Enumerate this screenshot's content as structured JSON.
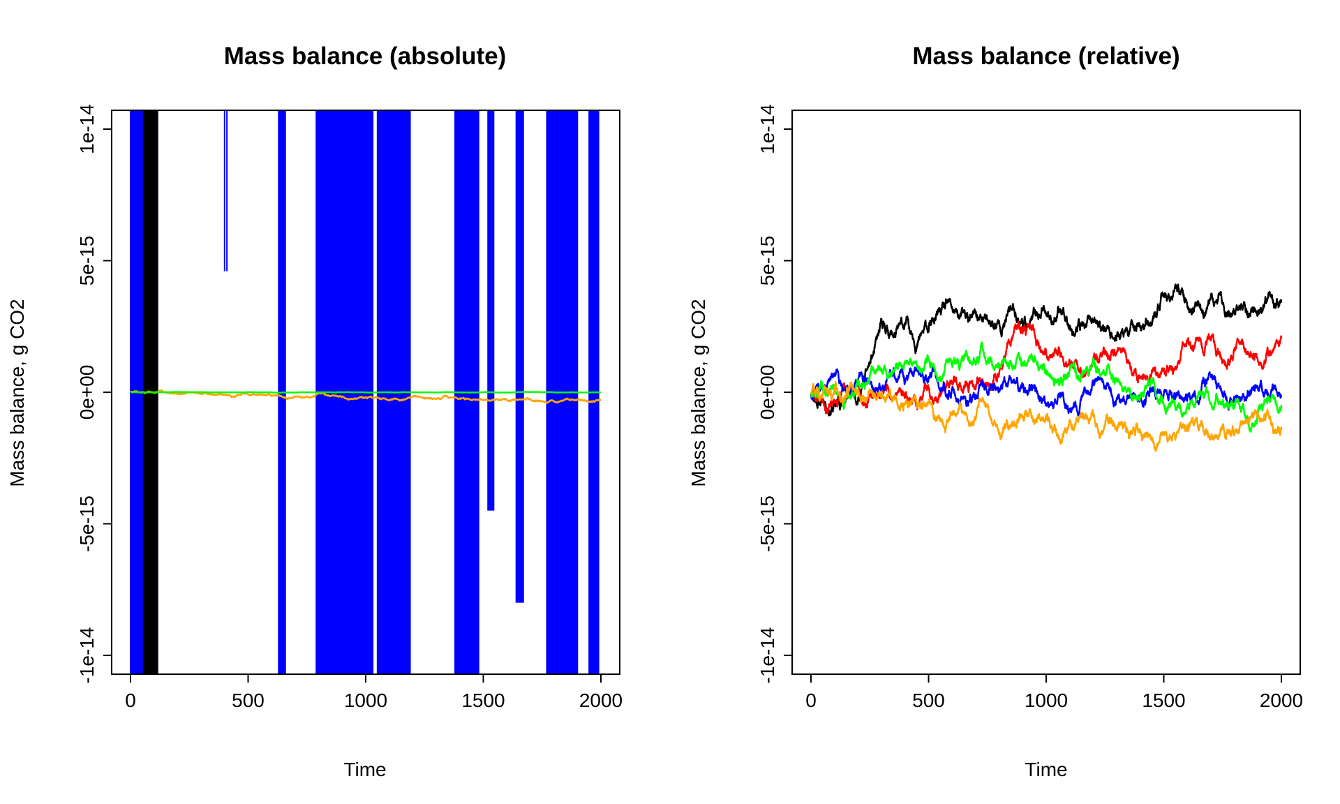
{
  "chart_data": [
    {
      "type": "line",
      "title": "Mass balance (absolute)",
      "xlabel": "Time",
      "ylabel": "Mass balance, g CO2",
      "xlim": [
        0,
        2000
      ],
      "ylim": [
        -1.08e-14,
        1.08e-14
      ],
      "xticks": [
        0,
        500,
        1000,
        1500,
        2000
      ],
      "xtick_labels": [
        "0",
        "500",
        "1000",
        "1500",
        "2000"
      ],
      "yticks": [
        -1e-14,
        -5e-15,
        0,
        5e-15,
        1e-14
      ],
      "ytick_labels": [
        "-1e-14",
        "-5e-15",
        "0e+00",
        "5e-15",
        "1e-14"
      ],
      "series": [
        {
          "name": "black",
          "color": "#000000",
          "style": "spikes",
          "segments": [
            [
              0,
              115,
              -1.08e-14,
              1.08e-14,
              0.55
            ]
          ]
        },
        {
          "name": "blue",
          "color": "#0000FF",
          "style": "spikes",
          "segments": [
            [
              0,
              30,
              -1.08e-14,
              1.08e-14,
              4
            ],
            [
              30,
              50,
              -1.08e-14,
              1.08e-14,
              2.5
            ],
            [
              400,
              410,
              1.08e-14,
              4.6e-15,
              10
            ],
            [
              630,
              660,
              -1.08e-14,
              1.08e-14,
              4
            ],
            [
              790,
              1000,
              -1.08e-14,
              1.08e-14,
              2.2
            ],
            [
              1000,
              1030,
              -1.08e-14,
              1.08e-14,
              3
            ],
            [
              1050,
              1190,
              -1.08e-14,
              1.08e-14,
              2.2
            ],
            [
              1380,
              1480,
              -1.08e-14,
              1.08e-14,
              2.5
            ],
            [
              1520,
              1545,
              1.08e-14,
              -4.5e-15,
              6
            ],
            [
              1640,
              1670,
              1.08e-14,
              -8e-15,
              5
            ],
            [
              1770,
              1900,
              -1.08e-14,
              1.08e-14,
              2.5
            ],
            [
              1950,
              1990,
              -1.08e-14,
              1.08e-14,
              4
            ]
          ]
        },
        {
          "name": "orange",
          "color": "#FFA500",
          "style": "walk",
          "seed": 7,
          "step": 1.7e-17,
          "drift": -2.5e-19,
          "start": 0,
          "end_target": -3.2e-16
        },
        {
          "name": "green",
          "color": "#00FF00",
          "style": "walk",
          "seed": 3,
          "step": 2e-18,
          "drift": 0,
          "start": 0,
          "end_target": 0
        }
      ]
    },
    {
      "type": "line",
      "title": "Mass balance (relative)",
      "xlabel": "Time",
      "ylabel": "Mass balance, g CO2",
      "xlim": [
        0,
        2000
      ],
      "ylim": [
        -1.08e-14,
        1.08e-14
      ],
      "xticks": [
        0,
        500,
        1000,
        1500,
        2000
      ],
      "xtick_labels": [
        "0",
        "500",
        "1000",
        "1500",
        "2000"
      ],
      "yticks": [
        -1e-14,
        -5e-15,
        0,
        5e-15,
        1e-14
      ],
      "ytick_labels": [
        "-1e-14",
        "-5e-15",
        "0e+00",
        "5e-15",
        "1e-14"
      ],
      "series": [
        {
          "name": "black",
          "color": "#000000",
          "style": "walk",
          "seed": 11,
          "step": 1.2e-16,
          "knots": [
            [
              0,
              0
            ],
            [
              100,
              -1e-16
            ],
            [
              200,
              2e-16
            ],
            [
              250,
              1e-15
            ],
            [
              300,
              1.9e-15
            ],
            [
              450,
              2.1e-15
            ],
            [
              550,
              2.6e-15
            ],
            [
              650,
              2.2e-15
            ],
            [
              800,
              2.3e-15
            ],
            [
              850,
              3.1e-15
            ],
            [
              950,
              2.7e-15
            ],
            [
              1000,
              3.2e-15
            ],
            [
              1150,
              2.9e-15
            ],
            [
              1250,
              2.6e-15
            ],
            [
              1350,
              2.1e-15
            ],
            [
              1450,
              3e-15
            ],
            [
              1500,
              3.6e-15
            ],
            [
              1600,
              3.1e-15
            ],
            [
              1700,
              3.1e-15
            ],
            [
              1800,
              3.3e-15
            ],
            [
              1900,
              3e-15
            ],
            [
              2000,
              2.9e-15
            ]
          ]
        },
        {
          "name": "red",
          "color": "#FF0000",
          "style": "walk",
          "seed": 23,
          "step": 1.1e-16,
          "knots": [
            [
              0,
              0
            ],
            [
              100,
              -2e-16
            ],
            [
              250,
              3e-16
            ],
            [
              450,
              1e-16
            ],
            [
              600,
              0
            ],
            [
              700,
              1e-16
            ],
            [
              780,
              6e-16
            ],
            [
              880,
              2.1e-15
            ],
            [
              1000,
              1.4e-15
            ],
            [
              1080,
              1.2e-15
            ],
            [
              1150,
              6e-16
            ],
            [
              1250,
              1.6e-15
            ],
            [
              1350,
              1.2e-15
            ],
            [
              1450,
              9e-16
            ],
            [
              1550,
              1.2e-15
            ],
            [
              1650,
              1.7e-15
            ],
            [
              1750,
              1.3e-15
            ],
            [
              1850,
              1.5e-15
            ],
            [
              1950,
              1.5e-15
            ],
            [
              2000,
              1.8e-15
            ]
          ]
        },
        {
          "name": "blue",
          "color": "#0000FF",
          "style": "walk",
          "seed": 31,
          "step": 1.1e-16,
          "knots": [
            [
              0,
              0
            ],
            [
              100,
              3e-16
            ],
            [
              200,
              4e-16
            ],
            [
              300,
              4e-16
            ],
            [
              400,
              3e-16
            ],
            [
              500,
              6e-16
            ],
            [
              600,
              5e-16
            ],
            [
              700,
              2e-16
            ],
            [
              800,
              4e-16
            ],
            [
              900,
              0
            ],
            [
              1000,
              1e-16
            ],
            [
              1100,
              2e-16
            ],
            [
              1200,
              0
            ],
            [
              1300,
              -5e-16
            ],
            [
              1400,
              -2e-16
            ],
            [
              1500,
              2e-16
            ],
            [
              1600,
              -2e-16
            ],
            [
              1700,
              5e-16
            ],
            [
              1800,
              0
            ],
            [
              1900,
              -3e-16
            ],
            [
              2000,
              1e-16
            ]
          ]
        },
        {
          "name": "green",
          "color": "#00FF00",
          "style": "walk",
          "seed": 47,
          "step": 1.1e-16,
          "knots": [
            [
              0,
              0
            ],
            [
              100,
              -2e-16
            ],
            [
              200,
              4e-16
            ],
            [
              300,
              8e-16
            ],
            [
              400,
              1.3e-15
            ],
            [
              550,
              1.2e-15
            ],
            [
              700,
              1.4e-15
            ],
            [
              800,
              1.2e-15
            ],
            [
              880,
              1.6e-15
            ],
            [
              1000,
              1e-15
            ],
            [
              1100,
              9e-16
            ],
            [
              1200,
              8e-16
            ],
            [
              1300,
              2e-16
            ],
            [
              1400,
              -4e-16
            ],
            [
              1500,
              -4e-16
            ],
            [
              1600,
              -2e-16
            ],
            [
              1700,
              -2e-16
            ],
            [
              1800,
              -1e-16
            ],
            [
              1900,
              -4e-16
            ],
            [
              2000,
              -2e-16
            ]
          ]
        },
        {
          "name": "orange",
          "color": "#FFA500",
          "style": "walk",
          "seed": 59,
          "step": 1.1e-16,
          "knots": [
            [
              0,
              0
            ],
            [
              100,
              2e-16
            ],
            [
              250,
              3e-16
            ],
            [
              400,
              1e-16
            ],
            [
              500,
              -2e-16
            ],
            [
              600,
              -3e-16
            ],
            [
              700,
              -6e-16
            ],
            [
              800,
              -8e-16
            ],
            [
              900,
              -8e-16
            ],
            [
              1000,
              -9e-16
            ],
            [
              1100,
              -1e-15
            ],
            [
              1200,
              -1e-15
            ],
            [
              1300,
              -1.1e-15
            ],
            [
              1400,
              -1.4e-15
            ],
            [
              1500,
              -1.2e-15
            ],
            [
              1600,
              -1.1e-15
            ],
            [
              1700,
              -1.2e-15
            ],
            [
              1800,
              -1.5e-15
            ],
            [
              1900,
              -1e-15
            ],
            [
              2000,
              -1.6e-15
            ]
          ]
        }
      ]
    }
  ]
}
